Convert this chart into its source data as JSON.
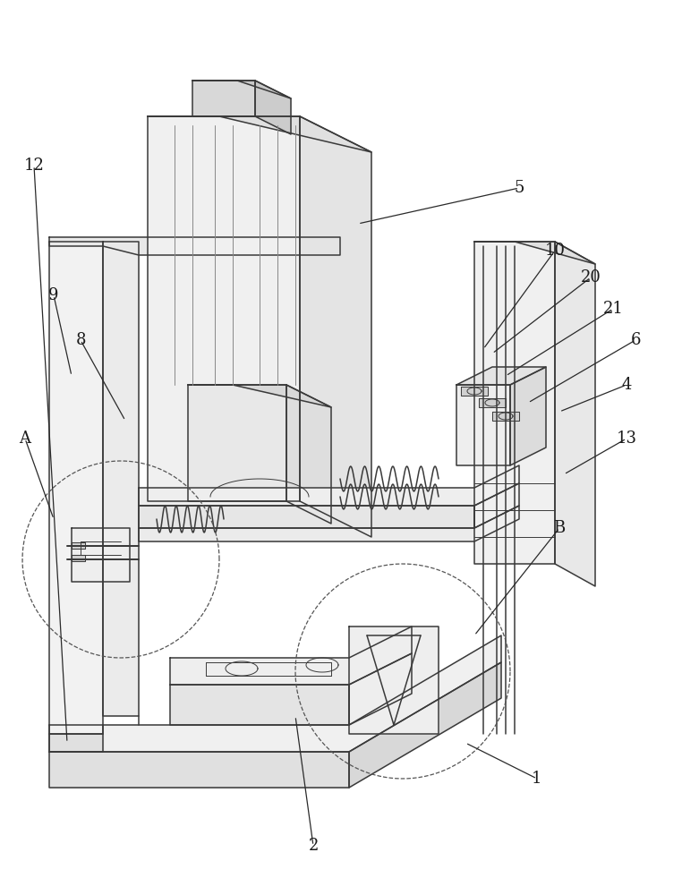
{
  "bg_color": "#ffffff",
  "lc": "#3a3a3a",
  "lw": 1.1,
  "lw_thin": 0.7,
  "figsize": [
    7.81,
    10.0
  ],
  "dpi": 100,
  "label_fontsize": 13,
  "label_color": "#1a1a1a"
}
